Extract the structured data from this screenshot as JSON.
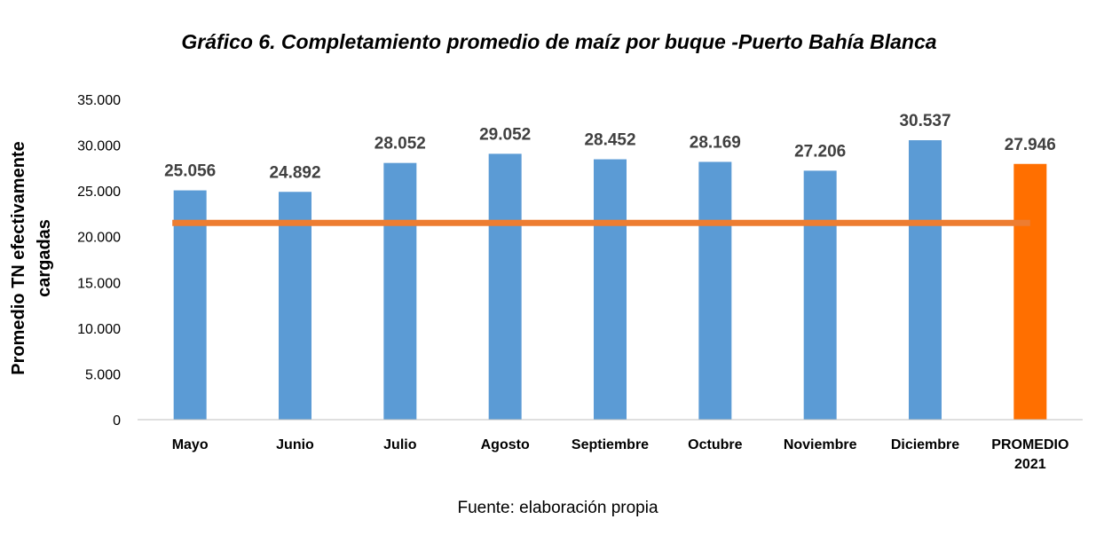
{
  "chart_data": {
    "type": "bar",
    "title": "Gráfico 6. Completamiento promedio de maíz por buque -Puerto Bahía Blanca",
    "ylabel_lines": [
      "Promedio TN efectivamente",
      "cargadas"
    ],
    "xlabel": "",
    "categories": [
      [
        "Mayo"
      ],
      [
        "Junio"
      ],
      [
        "Julio"
      ],
      [
        "Agosto"
      ],
      [
        "Septiembre"
      ],
      [
        "Octubre"
      ],
      [
        "Noviembre"
      ],
      [
        "Diciembre"
      ],
      [
        "PROMEDIO",
        "2021"
      ]
    ],
    "values": [
      25056,
      24892,
      28052,
      29052,
      28452,
      28169,
      27206,
      30537,
      27946
    ],
    "value_labels": [
      "25.056",
      "24.892",
      "28.052",
      "29.052",
      "28.452",
      "28.169",
      "27.206",
      "30.537",
      "27.946"
    ],
    "highlight_index": 8,
    "ylim": [
      0,
      35000
    ],
    "yticks": [
      0,
      5000,
      10000,
      15000,
      20000,
      25000,
      30000,
      35000
    ],
    "ytick_labels": [
      "0",
      "5.000",
      "10.000",
      "15.000",
      "20.000",
      "25.000",
      "30.000",
      "35.000"
    ],
    "reference_line": {
      "value": 21500
    },
    "grid": false,
    "legend": "none",
    "colors": {
      "bar": "#5b9bd5",
      "highlight": "#ff6f00",
      "reference_line": "#ed7d31"
    }
  },
  "source": "Fuente: elaboración propia"
}
